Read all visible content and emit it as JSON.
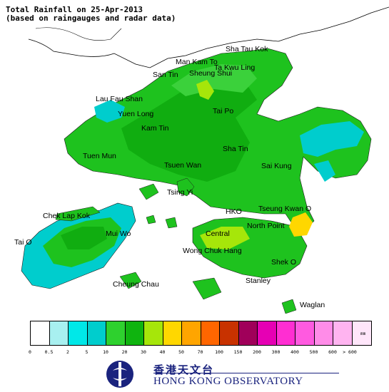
{
  "title": {
    "line1": "Total Rainfall on 25-Apr-2013",
    "line2": "(based on raingauges and radar data)"
  },
  "places": [
    "Sha Tau Kok",
    "Man Kam To",
    "Ta Kwu Ling",
    "San Tin",
    "Sheung Shui",
    "Lau Fau Shan",
    "Yuen Long",
    "Tai Po",
    "Kam Tin",
    "Sha Tin",
    "Tuen Mun",
    "Tsuen Wan",
    "Sai Kung",
    "Tsing Yi",
    "Chek Lap Kok",
    "HKO",
    "Tseung Kwan O",
    "North Point",
    "Mui Wo",
    "Central",
    "Tai O",
    "Wong Chuk Hang",
    "Shek O",
    "Cheung Chau",
    "Stanley",
    "Waglan"
  ],
  "legend": {
    "unit": "mm",
    "colors": [
      "#ffffff",
      "#a8f0f0",
      "#00e8e8",
      "#00cdcd",
      "#2ed12e",
      "#0fb40f",
      "#a6e60a",
      "#ffd700",
      "#ffa500",
      "#ff6600",
      "#c83200",
      "#a0005a",
      "#e600b4",
      "#ff2ed2",
      "#ff5ae0",
      "#ff8ce8",
      "#ffb4f0",
      "#ffe6fa"
    ],
    "ticks": [
      "0",
      "0.5",
      "2",
      "5",
      "10",
      "20",
      "30",
      "40",
      "50",
      "70",
      "100",
      "150",
      "200",
      "300",
      "400",
      "500",
      "600",
      "> 600"
    ]
  },
  "logo": {
    "chinese": "香港天文台",
    "english": "HONG KONG OBSERVATORY"
  }
}
